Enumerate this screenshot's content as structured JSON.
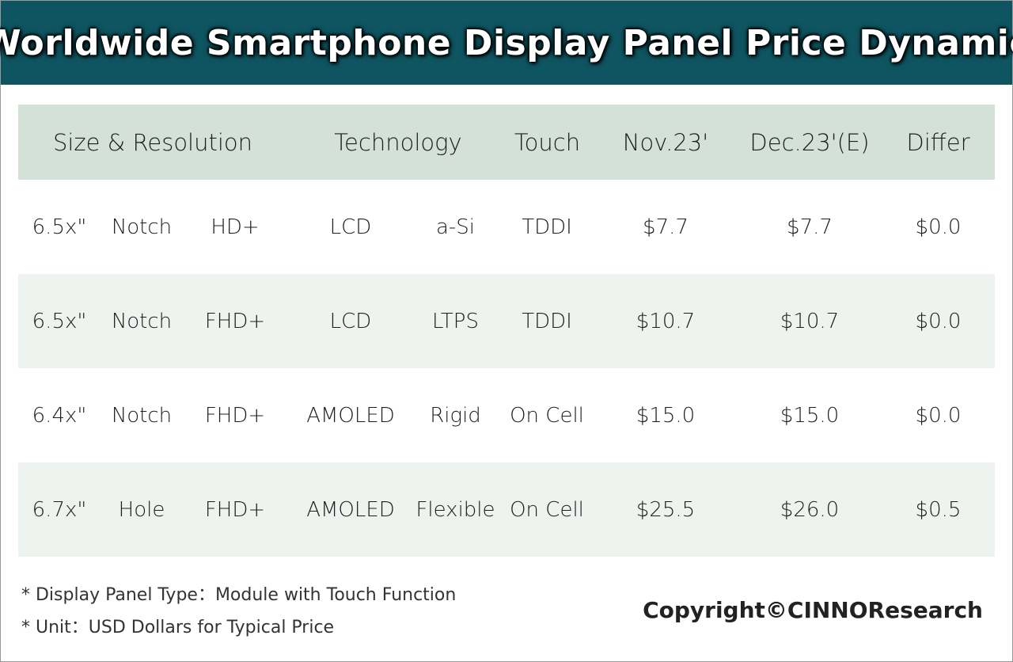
{
  "title": "Worldwide Smartphone Display Panel Price Dynamic",
  "chart_data": {
    "type": "table",
    "title": "Worldwide Smartphone Display Panel Price Dynamic",
    "headers": [
      "Size & Resolution",
      "Technology",
      "Touch",
      "Nov.23'",
      "Dec.23'(E)",
      "Differ"
    ],
    "rows": [
      [
        "6.5x\"",
        "Notch",
        "HD+",
        "LCD",
        "a-Si",
        "TDDI",
        "$7.7",
        "$7.7",
        "$0.0"
      ],
      [
        "6.5x\"",
        "Notch",
        "FHD+",
        "LCD",
        "LTPS",
        "TDDI",
        "$10.7",
        "$10.7",
        "$0.0"
      ],
      [
        "6.4x\"",
        "Notch",
        "FHD+",
        "AMOLED",
        "Rigid",
        "On Cell",
        "$15.0",
        "$15.0",
        "$0.0"
      ],
      [
        "6.7x\"",
        "Hole",
        "FHD+",
        "AMOLED",
        "Flexible",
        "On Cell",
        "$25.5",
        "$26.0",
        "$0.5"
      ]
    ],
    "series": [
      {
        "name": "Nov.23'",
        "values": [
          7.7,
          10.7,
          15.0,
          25.5
        ]
      },
      {
        "name": "Dec.23'(E)",
        "values": [
          7.7,
          10.7,
          15.0,
          26.0
        ]
      },
      {
        "name": "Differ",
        "values": [
          0.0,
          0.0,
          0.0,
          0.5
        ]
      }
    ]
  },
  "notes": [
    "* Display Panel Type：Module with Touch Function",
    "* Unit：USD Dollars for Typical Price"
  ],
  "copyright": "Copyright©CINNOResearch",
  "colors": {
    "title_bar": "#0f5561",
    "header_row": "#d4e1d8",
    "alt_row": "#eef3ef"
  }
}
